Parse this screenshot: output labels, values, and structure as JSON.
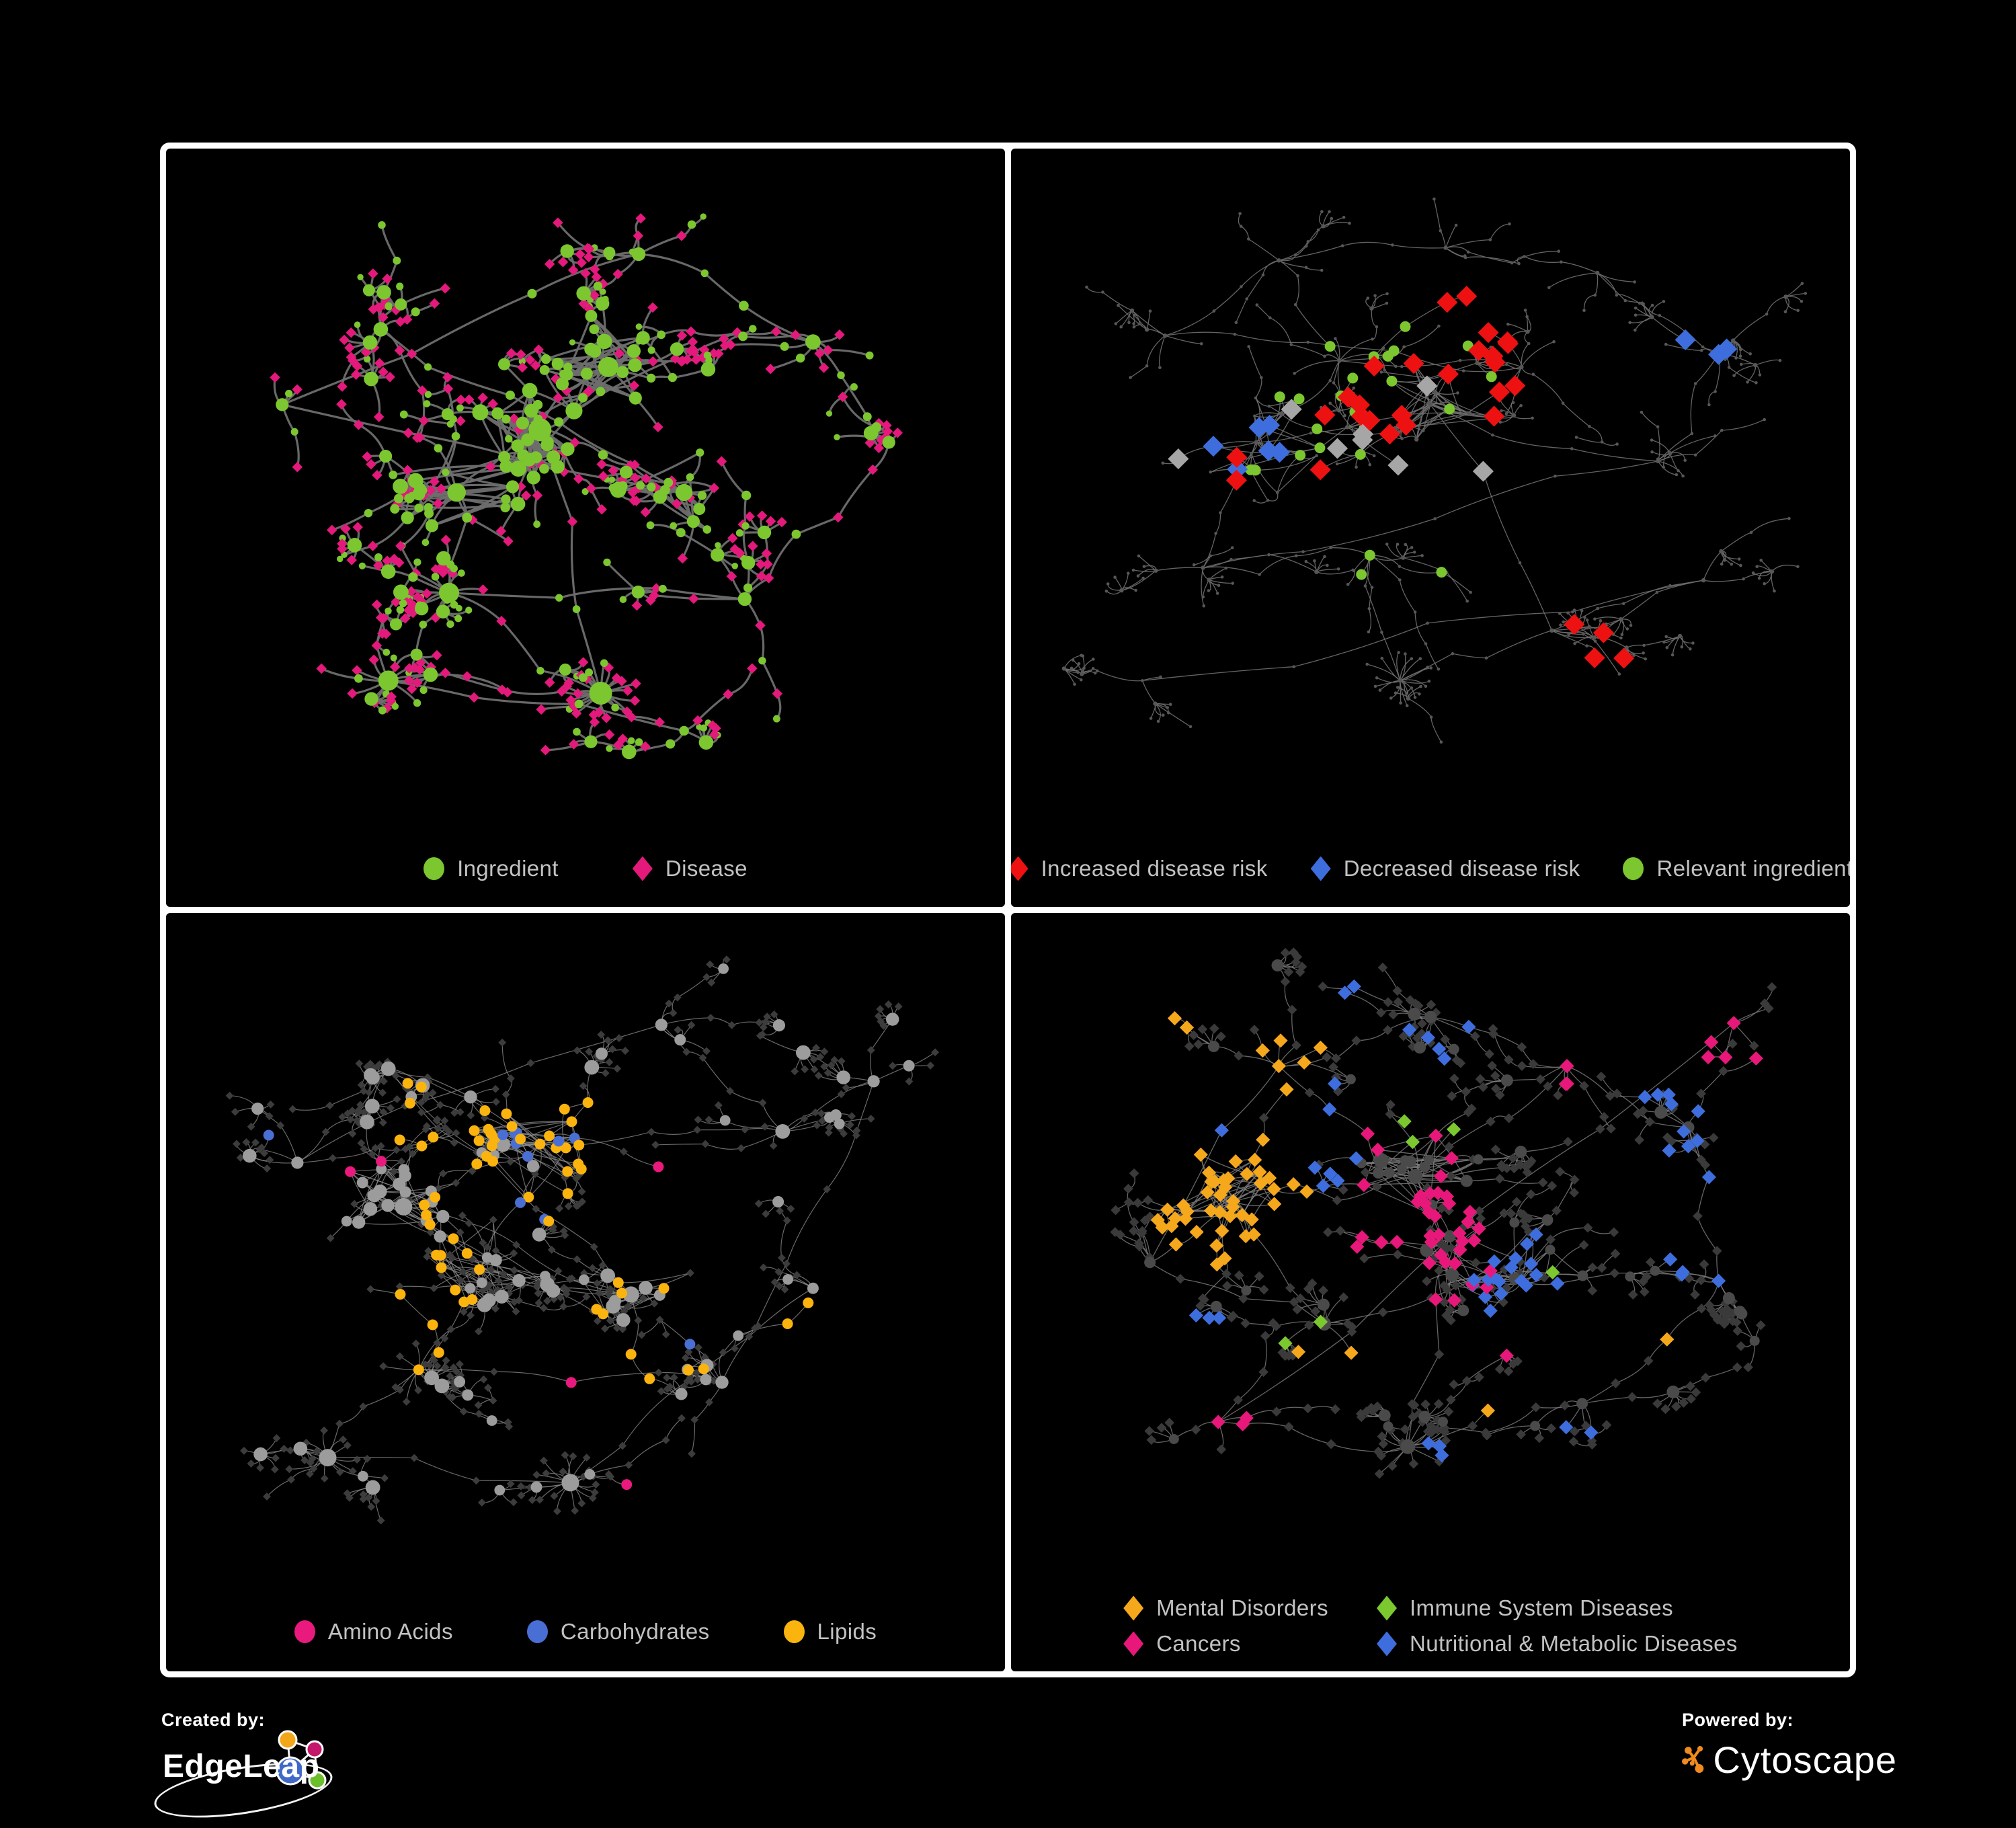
{
  "page": {
    "background": "#000000",
    "frame_color": "#FFFFFF"
  },
  "footer": {
    "created_by": {
      "label": "Created by:",
      "brand": "EdgeLeap"
    },
    "powered_by": {
      "label": "Powered by:",
      "brand": "Cytoscape"
    }
  },
  "chart_data": [
    {
      "id": "ingredient-disease-network",
      "type": "network",
      "variant": "bipartite",
      "legend_layout": "row",
      "legend": [
        {
          "label": "Ingredient",
          "shape": "circle",
          "color": "#7CC62F"
        },
        {
          "label": "Disease",
          "shape": "diamond",
          "color": "#E3197B"
        }
      ],
      "style": {
        "edge_color": "#6E6E6E",
        "edge_width": 3.2,
        "edge_opacity": 0.95
      },
      "palette": {
        "a": "#7CC62F",
        "b": "#E3197B"
      },
      "seed": 101,
      "hubs": [
        [
          0.44,
          0.4,
          13,
          0,
          55
        ],
        [
          0.53,
          0.3,
          10,
          0,
          40
        ],
        [
          0.33,
          0.5,
          10,
          0,
          30
        ],
        [
          0.23,
          0.24,
          6,
          0,
          0
        ],
        [
          0.63,
          0.5,
          8,
          0,
          14
        ],
        [
          0.1,
          0.36,
          4,
          0,
          0
        ],
        [
          0.57,
          0.12,
          5,
          0,
          0
        ],
        [
          0.8,
          0.26,
          6,
          0,
          0
        ],
        [
          0.9,
          0.42,
          4,
          0,
          0
        ],
        [
          0.71,
          0.67,
          5,
          0,
          0
        ],
        [
          0.32,
          0.66,
          6,
          6,
          0
        ],
        [
          0.52,
          0.82,
          3,
          20,
          0
        ],
        [
          0.24,
          0.8,
          4,
          9,
          0
        ],
        [
          0.63,
          0.88,
          3,
          0,
          0
        ]
      ],
      "links": [
        [
          0,
          4
        ],
        [
          1,
          7
        ],
        [
          2,
          10
        ],
        [
          0,
          11
        ]
      ],
      "highlights": []
    },
    {
      "id": "disease-risk-network",
      "type": "network",
      "variant": "dots",
      "legend_layout": "row-sm",
      "legend": [
        {
          "label": "Increased disease risk",
          "shape": "diamond",
          "color": "#EE1111"
        },
        {
          "label": "Decreased disease risk",
          "shape": "diamond",
          "color": "#3E6EDD"
        },
        {
          "label": "Relevant ingredient",
          "shape": "circle",
          "color": "#7CC62F"
        }
      ],
      "style": {
        "edge_color": "#6F6F6F",
        "edge_width": 1.3,
        "edge_opacity": 0.9
      },
      "palette": {
        "base": "#575757"
      },
      "seed": 202,
      "hubs": [
        [
          0.5,
          0.36,
          11,
          0,
          45
        ],
        [
          0.27,
          0.42,
          8,
          0,
          22
        ],
        [
          0.38,
          0.29,
          8,
          0,
          0
        ],
        [
          0.62,
          0.3,
          7,
          0,
          0
        ],
        [
          0.15,
          0.25,
          5,
          0,
          0
        ],
        [
          0.3,
          0.13,
          5,
          0,
          0
        ],
        [
          0.52,
          0.11,
          5,
          0,
          0
        ],
        [
          0.72,
          0.15,
          4,
          0,
          0
        ],
        [
          0.88,
          0.28,
          5,
          0,
          0
        ],
        [
          0.8,
          0.45,
          5,
          0,
          0
        ],
        [
          0.2,
          0.62,
          5,
          0,
          0
        ],
        [
          0.42,
          0.6,
          6,
          0,
          0
        ],
        [
          0.46,
          0.8,
          3,
          15,
          0
        ],
        [
          0.66,
          0.72,
          5,
          0,
          0
        ],
        [
          0.86,
          0.64,
          3,
          0,
          0
        ],
        [
          0.12,
          0.8,
          3,
          0,
          0
        ]
      ],
      "links": [
        [
          0,
          9
        ],
        [
          2,
          5
        ],
        [
          1,
          10
        ],
        [
          0,
          13
        ]
      ],
      "highlights": [
        {
          "color": "#EE1111",
          "shape": "diamond",
          "size": 11,
          "points": [
            [
              0.5,
              0.37,
              0.16,
              14
            ],
            [
              0.3,
              0.4,
              0.1,
              4
            ],
            [
              0.62,
              0.33,
              0.1,
              5
            ],
            [
              0.7,
              0.7,
              0.06,
              2
            ],
            [
              0.74,
              0.76,
              0.05,
              2
            ],
            [
              0.55,
              0.17,
              0.04,
              2
            ]
          ]
        },
        {
          "color": "#3E6EDD",
          "shape": "diamond",
          "size": 11,
          "points": [
            [
              0.24,
              0.43,
              0.08,
              6
            ],
            [
              0.87,
              0.27,
              0.05,
              3
            ]
          ]
        },
        {
          "color": "#A6A6A6",
          "shape": "diamond",
          "size": 11,
          "points": [
            [
              0.4,
              0.35,
              0.12,
              5
            ],
            [
              0.2,
              0.4,
              0.06,
              2
            ],
            [
              0.52,
              0.5,
              0.08,
              2
            ]
          ]
        },
        {
          "color": "#7CC62F",
          "shape": "circle",
          "size": 8,
          "points": [
            [
              0.48,
              0.38,
              0.16,
              16
            ],
            [
              0.28,
              0.42,
              0.12,
              6
            ],
            [
              0.12,
              0.4,
              0.05,
              2
            ],
            [
              0.4,
              0.6,
              0.06,
              2
            ],
            [
              0.3,
              0.7,
              0.04,
              1
            ],
            [
              0.55,
              0.65,
              0.05,
              1
            ],
            [
              0.97,
              0.33,
              0.02,
              1
            ]
          ]
        }
      ]
    },
    {
      "id": "macronutrient-network",
      "type": "network",
      "variant": "nutrients",
      "legend_layout": "row",
      "legend": [
        {
          "label": "Amino Acids",
          "shape": "circle",
          "color": "#E9197D"
        },
        {
          "label": "Carbohydrates",
          "shape": "circle",
          "color": "#4A6FD4"
        },
        {
          "label": "Lipids",
          "shape": "circle",
          "color": "#FBB30E"
        }
      ],
      "style": {
        "edge_color": "#8E8E8E",
        "edge_width": 1.2,
        "edge_opacity": 0.75
      },
      "palette": {
        "base": "#3C3C3C",
        "gray": "#9C9C9C"
      },
      "seed": 303,
      "hubs": [
        [
          0.26,
          0.42,
          12,
          0,
          50
        ],
        [
          0.44,
          0.32,
          11,
          0,
          45
        ],
        [
          0.36,
          0.52,
          10,
          0,
          32
        ],
        [
          0.56,
          0.56,
          7,
          0,
          14
        ],
        [
          0.24,
          0.2,
          6,
          0,
          0
        ],
        [
          0.12,
          0.35,
          4,
          0,
          0
        ],
        [
          0.6,
          0.13,
          4,
          0,
          0
        ],
        [
          0.76,
          0.3,
          6,
          0,
          0
        ],
        [
          0.88,
          0.22,
          4,
          0,
          0
        ],
        [
          0.68,
          0.7,
          5,
          0,
          0
        ],
        [
          0.28,
          0.68,
          6,
          8,
          0
        ],
        [
          0.16,
          0.82,
          3,
          11,
          0
        ],
        [
          0.48,
          0.86,
          3,
          17,
          0
        ],
        [
          0.8,
          0.55,
          4,
          0,
          0
        ]
      ],
      "links": [
        [
          0,
          3
        ],
        [
          1,
          7
        ],
        [
          2,
          10
        ],
        [
          1,
          4
        ]
      ],
      "highlights": [
        {
          "color": "#FBB30E",
          "shape": "circle",
          "size": 8,
          "points": [
            [
              0.44,
              0.32,
              0.1,
              26
            ],
            [
              0.36,
              0.48,
              0.1,
              14
            ],
            [
              0.3,
              0.26,
              0.08,
              6
            ],
            [
              0.56,
              0.56,
              0.06,
              5
            ],
            [
              0.6,
              0.72,
              0.08,
              4
            ],
            [
              0.25,
              0.62,
              0.07,
              4
            ],
            [
              0.14,
              0.55,
              0.04,
              2
            ],
            [
              0.78,
              0.62,
              0.05,
              3
            ]
          ]
        },
        {
          "color": "#E9197D",
          "shape": "circle",
          "size": 8,
          "points": [
            [
              0.1,
              0.45,
              0.04,
              2
            ],
            [
              0.2,
              0.32,
              0.05,
              2
            ],
            [
              0.52,
              0.7,
              0.06,
              3
            ],
            [
              0.46,
              0.63,
              0.04,
              2
            ],
            [
              0.3,
              0.78,
              0.04,
              2
            ],
            [
              0.6,
              0.4,
              0.05,
              1
            ],
            [
              0.44,
              0.04,
              0.03,
              1
            ],
            [
              0.9,
              0.35,
              0.04,
              1
            ],
            [
              0.55,
              0.85,
              0.03,
              1
            ]
          ]
        },
        {
          "color": "#4A6FD4",
          "shape": "circle",
          "size": 8,
          "points": [
            [
              0.46,
              0.3,
              0.07,
              7
            ],
            [
              0.09,
              0.28,
              0.03,
              1
            ],
            [
              0.64,
              0.6,
              0.04,
              1
            ],
            [
              0.42,
              0.42,
              0.04,
              2
            ],
            [
              0.35,
              0.12,
              0.03,
              1
            ]
          ]
        }
      ]
    },
    {
      "id": "disease-category-network",
      "type": "network",
      "variant": "categories",
      "legend_layout": "grid2",
      "legend": [
        {
          "label": "Mental Disorders",
          "shape": "diamond",
          "color": "#F5A81C"
        },
        {
          "label": "Immune System Diseases",
          "shape": "diamond",
          "color": "#7CC82F"
        },
        {
          "label": "Cancers",
          "shape": "diamond",
          "color": "#E8187B"
        },
        {
          "label": "Nutritional & Metabolic Diseases",
          "shape": "diamond",
          "color": "#3E6EDD"
        }
      ],
      "style": {
        "edge_color": "#7E7E7E",
        "edge_width": 1.3,
        "edge_opacity": 0.8
      },
      "palette": {
        "base": "#3A3A3A",
        "hub": "#4A4A4A"
      },
      "seed": 404,
      "hubs": [
        [
          0.24,
          0.42,
          12,
          0,
          50
        ],
        [
          0.48,
          0.38,
          12,
          0,
          45
        ],
        [
          0.52,
          0.52,
          8,
          0,
          18
        ],
        [
          0.62,
          0.55,
          7,
          0,
          18
        ],
        [
          0.36,
          0.62,
          7,
          0,
          0
        ],
        [
          0.13,
          0.52,
          5,
          0,
          0
        ],
        [
          0.3,
          0.2,
          6,
          0,
          0
        ],
        [
          0.5,
          0.12,
          6,
          0,
          0
        ],
        [
          0.68,
          0.2,
          5,
          0,
          0
        ],
        [
          0.84,
          0.3,
          6,
          0,
          0
        ],
        [
          0.88,
          0.55,
          4,
          0,
          0
        ],
        [
          0.7,
          0.75,
          5,
          0,
          0
        ],
        [
          0.47,
          0.82,
          5,
          9,
          0
        ],
        [
          0.22,
          0.78,
          4,
          0,
          0
        ],
        [
          0.9,
          0.13,
          4,
          0,
          0
        ]
      ],
      "links": [
        [
          0,
          4
        ],
        [
          1,
          8
        ],
        [
          2,
          12
        ],
        [
          3,
          10
        ],
        [
          1,
          6
        ]
      ],
      "highlights": [
        {
          "color": "#F5A81C",
          "shape": "diamond",
          "size": 7.5,
          "points": [
            [
              0.24,
              0.42,
              0.11,
              48
            ],
            [
              0.3,
              0.18,
              0.07,
              6
            ],
            [
              0.36,
              0.7,
              0.05,
              3
            ],
            [
              0.13,
              0.13,
              0.05,
              3
            ],
            [
              0.6,
              0.08,
              0.04,
              2
            ],
            [
              0.56,
              0.78,
              0.03,
              1
            ],
            [
              0.8,
              0.62,
              0.03,
              1
            ]
          ]
        },
        {
          "color": "#E8187B",
          "shape": "diamond",
          "size": 7.5,
          "points": [
            [
              0.5,
              0.5,
              0.1,
              30
            ],
            [
              0.46,
              0.36,
              0.08,
              8
            ],
            [
              0.9,
              0.15,
              0.05,
              5
            ],
            [
              0.68,
              0.25,
              0.05,
              3
            ],
            [
              0.24,
              0.74,
              0.05,
              3
            ],
            [
              0.44,
              0.9,
              0.03,
              1
            ],
            [
              0.6,
              0.64,
              0.04,
              2
            ]
          ]
        },
        {
          "color": "#3E6EDD",
          "shape": "diamond",
          "size": 7.5,
          "points": [
            [
              0.62,
              0.55,
              0.08,
              18
            ],
            [
              0.8,
              0.32,
              0.1,
              10
            ],
            [
              0.3,
              0.3,
              0.12,
              8
            ],
            [
              0.5,
              0.14,
              0.08,
              5
            ],
            [
              0.86,
              0.5,
              0.06,
              4
            ],
            [
              0.5,
              0.85,
              0.05,
              3
            ],
            [
              0.18,
              0.6,
              0.06,
              3
            ],
            [
              0.1,
              0.2,
              0.05,
              2
            ],
            [
              0.7,
              0.8,
              0.04,
              2
            ],
            [
              0.4,
              0.05,
              0.04,
              2
            ]
          ]
        },
        {
          "color": "#7CC82F",
          "shape": "diamond",
          "size": 7.5,
          "points": [
            [
              0.5,
              0.3,
              0.1,
              3
            ],
            [
              0.36,
              0.64,
              0.06,
              2
            ],
            [
              0.66,
              0.58,
              0.05,
              1
            ],
            [
              0.28,
              0.88,
              0.03,
              1
            ],
            [
              0.5,
              0.05,
              0.03,
              1
            ]
          ]
        }
      ]
    }
  ]
}
